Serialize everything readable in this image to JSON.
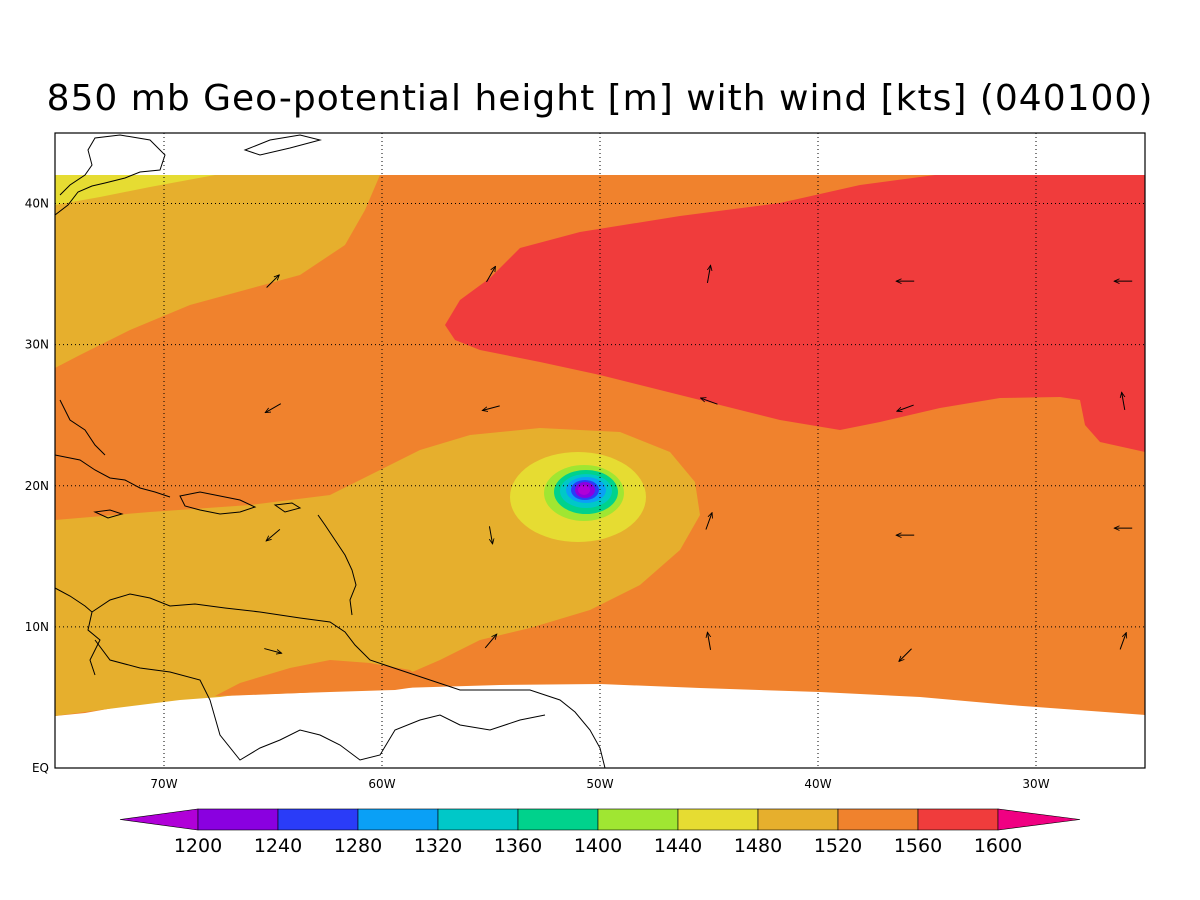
{
  "title": "850 mb Geo-potential height [m] with wind [kts] (040100)",
  "map": {
    "lon_range": [
      -75,
      -25
    ],
    "lat_range": [
      0,
      45
    ],
    "lon_ticks": [
      {
        "value": -70,
        "label": "70W"
      },
      {
        "value": -60,
        "label": "60W"
      },
      {
        "value": -50,
        "label": "50W"
      },
      {
        "value": -40,
        "label": "40W"
      },
      {
        "value": -30,
        "label": "30W"
      }
    ],
    "lat_ticks": [
      {
        "value": 0,
        "label": "EQ"
      },
      {
        "value": 10,
        "label": "10N"
      },
      {
        "value": 20,
        "label": "20N"
      },
      {
        "value": 30,
        "label": "30N"
      },
      {
        "value": 40,
        "label": "40N"
      }
    ],
    "grid": "dotted",
    "cyclone_center": {
      "lon": -51,
      "lat": 19.7
    }
  },
  "colorbar": {
    "levels": [
      "1200",
      "1240",
      "1280",
      "1320",
      "1360",
      "1400",
      "1440",
      "1480",
      "1520",
      "1560",
      "1600"
    ],
    "colors": [
      "#b000d8",
      "#8a00e0",
      "#2a3cf8",
      "#0aa0f6",
      "#00c8c8",
      "#00d28c",
      "#a0e632",
      "#e6dc32",
      "#e6af2d",
      "#f0822d",
      "#f03c3c",
      "#f00082"
    ]
  },
  "wind_arrows": [
    {
      "lon": -65,
      "lat": 34.5,
      "dir": 45
    },
    {
      "lon": -55,
      "lat": 35,
      "dir": 60
    },
    {
      "lon": -45,
      "lat": 35,
      "dir": 80
    },
    {
      "lon": -36,
      "lat": 34.5,
      "dir": 180
    },
    {
      "lon": -26,
      "lat": 34.5,
      "dir": 180
    },
    {
      "lon": -65,
      "lat": 25.5,
      "dir": 210
    },
    {
      "lon": -55,
      "lat": 25.5,
      "dir": 195
    },
    {
      "lon": -45,
      "lat": 26,
      "dir": 160
    },
    {
      "lon": -36,
      "lat": 25.5,
      "dir": 200
    },
    {
      "lon": -26,
      "lat": 26,
      "dir": 100
    },
    {
      "lon": -65,
      "lat": 16.5,
      "dir": 220
    },
    {
      "lon": -55,
      "lat": 16.5,
      "dir": 280
    },
    {
      "lon": -45,
      "lat": 17.5,
      "dir": 70
    },
    {
      "lon": -36,
      "lat": 16.5,
      "dir": 180
    },
    {
      "lon": -26,
      "lat": 17,
      "dir": 180
    },
    {
      "lon": -65,
      "lat": 8.3,
      "dir": 345
    },
    {
      "lon": -55,
      "lat": 9,
      "dir": 50
    },
    {
      "lon": -45,
      "lat": 9,
      "dir": 100
    },
    {
      "lon": -36,
      "lat": 8,
      "dir": 225
    },
    {
      "lon": -26,
      "lat": 9,
      "dir": 70
    }
  ]
}
